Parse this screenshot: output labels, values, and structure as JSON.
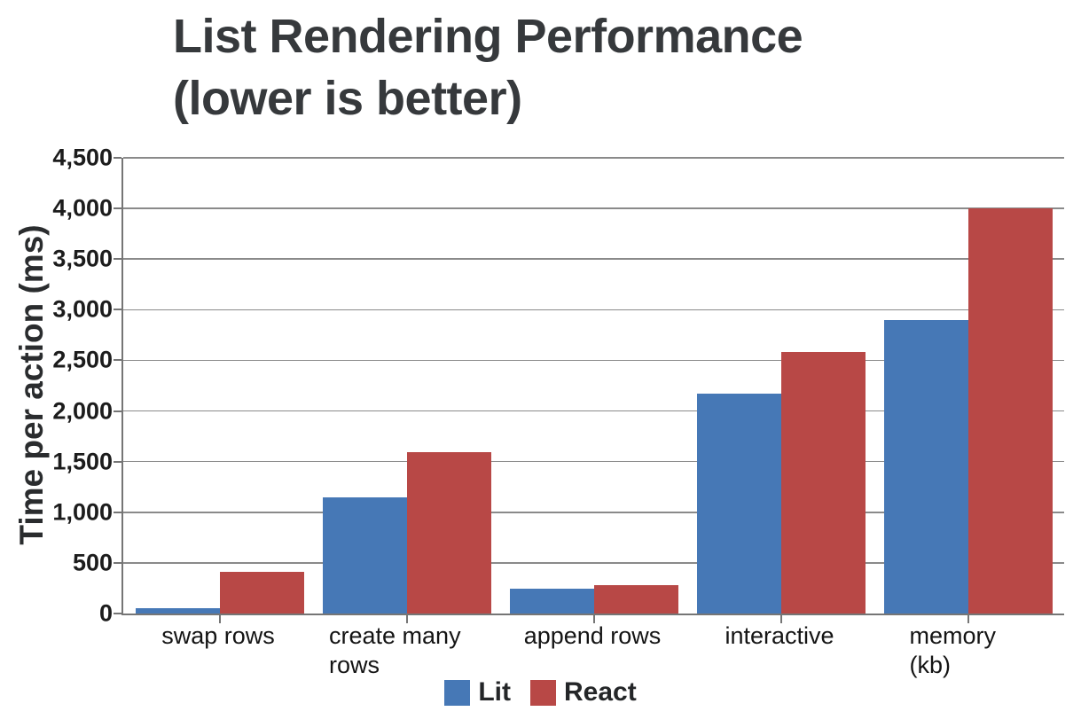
{
  "title": {
    "line1": "List Rendering Performance",
    "line2": "(lower is better)",
    "color": "#36393c"
  },
  "chart_data": {
    "type": "bar",
    "title": "List Rendering Performance (lower is better)",
    "ylabel": "Time per action (ms)",
    "xlabel": "",
    "ylim": [
      0,
      4500
    ],
    "ytick_interval": 500,
    "ytick_labels": [
      "0",
      "500",
      "1,000",
      "1,500",
      "2,000",
      "2,500",
      "3,000",
      "3,500",
      "4,000",
      "4,500"
    ],
    "grid": true,
    "legend_position": "bottom",
    "categories": [
      "swap rows",
      "create many rows",
      "append rows",
      "interactive",
      "memory (kb)"
    ],
    "series": [
      {
        "name": "Lit",
        "color": "#4678B6",
        "values": [
          50,
          1150,
          245,
          2175,
          2900
        ]
      },
      {
        "name": "React",
        "color": "#B84846",
        "values": [
          410,
          1590,
          280,
          2580,
          4000
        ]
      }
    ]
  },
  "colors": {
    "axis_line": "#757575",
    "grid_line": "#8a8a8a",
    "tick_text": "#1c1c1c",
    "background": "#ffffff"
  }
}
